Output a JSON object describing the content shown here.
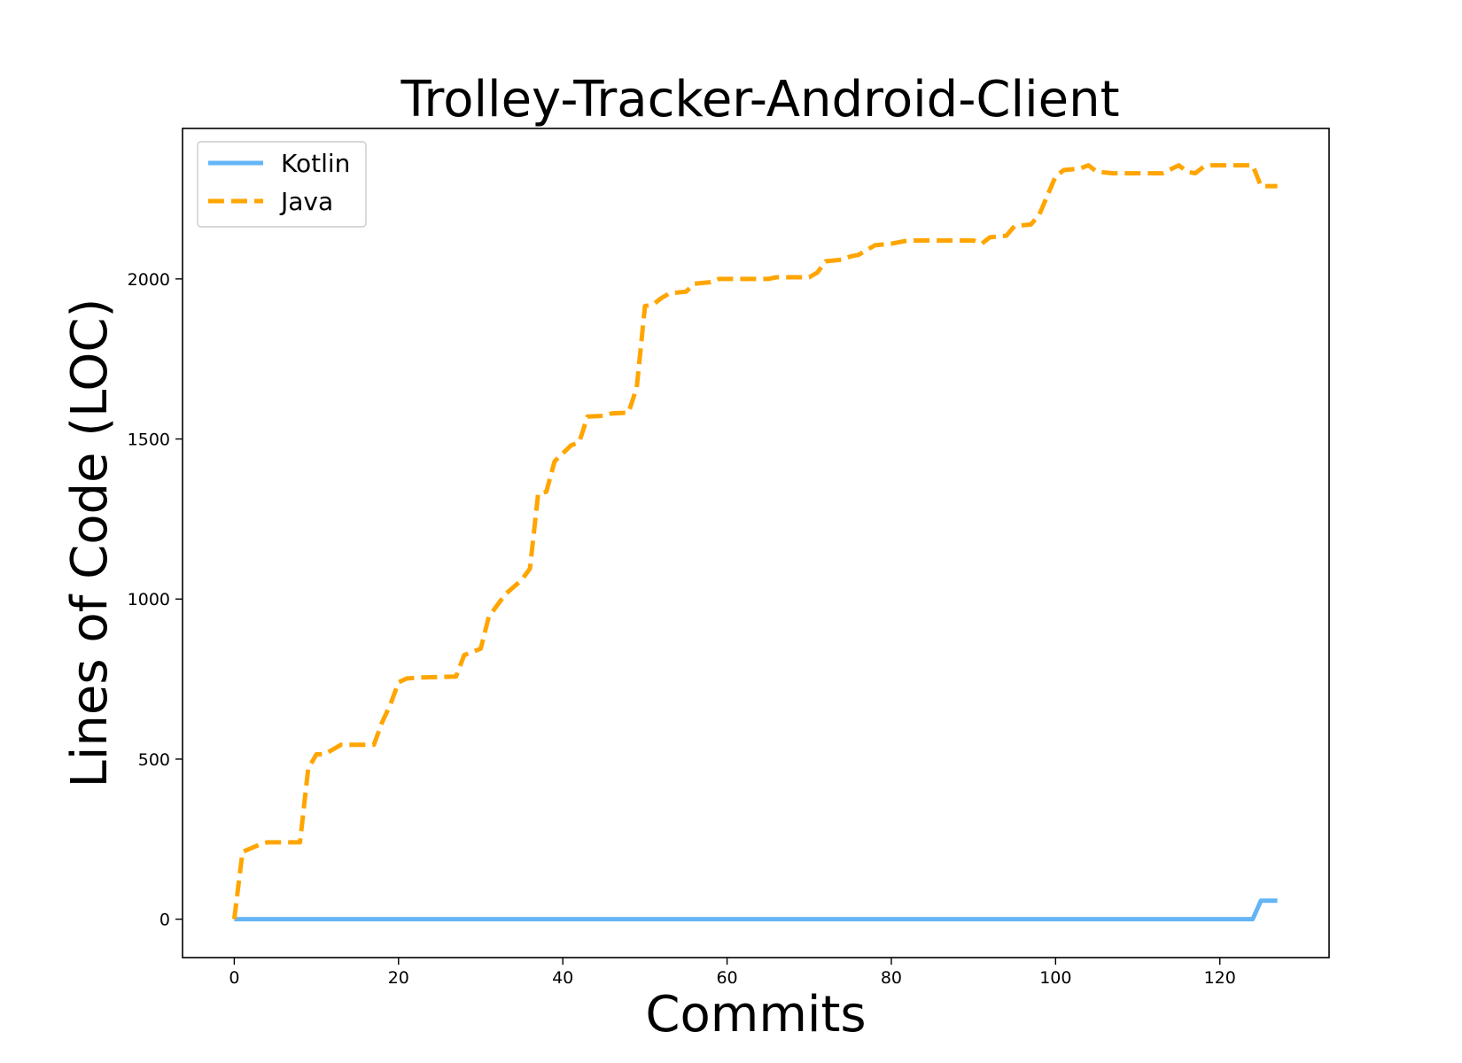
{
  "chart_data": {
    "type": "line",
    "title": "Trolley-Tracker-Android-Client",
    "xlabel": "Commits",
    "ylabel": "Lines of Code (LOC)",
    "xlim": [
      -6.3,
      133.3
    ],
    "ylim": [
      -120,
      2470
    ],
    "xticks": [
      0,
      20,
      40,
      60,
      80,
      100,
      120
    ],
    "yticks": [
      0,
      500,
      1000,
      1500,
      2000
    ],
    "grid": false,
    "legend": "top-left",
    "series": [
      {
        "name": "Kotlin",
        "color": "#64b5f6",
        "style": "solid",
        "points": [
          [
            0,
            0
          ],
          [
            124,
            0
          ],
          [
            125,
            58
          ],
          [
            127,
            58
          ]
        ]
      },
      {
        "name": "Java",
        "color": "#ffa500",
        "style": "dashed",
        "points": [
          [
            0,
            0
          ],
          [
            1,
            210
          ],
          [
            3,
            232
          ],
          [
            4,
            240
          ],
          [
            8,
            240
          ],
          [
            9,
            470
          ],
          [
            10,
            515
          ],
          [
            11,
            515
          ],
          [
            12,
            530
          ],
          [
            13,
            545
          ],
          [
            17,
            545
          ],
          [
            18,
            615
          ],
          [
            19,
            670
          ],
          [
            20,
            740
          ],
          [
            21,
            752
          ],
          [
            23,
            755
          ],
          [
            27,
            758
          ],
          [
            28,
            825
          ],
          [
            30,
            845
          ],
          [
            31,
            945
          ],
          [
            33,
            1015
          ],
          [
            35,
            1060
          ],
          [
            36,
            1095
          ],
          [
            37,
            1330
          ],
          [
            38,
            1335
          ],
          [
            39,
            1430
          ],
          [
            41,
            1480
          ],
          [
            42,
            1490
          ],
          [
            43,
            1570
          ],
          [
            45,
            1572
          ],
          [
            46,
            1580
          ],
          [
            48,
            1582
          ],
          [
            49,
            1660
          ],
          [
            50,
            1915
          ],
          [
            51,
            1920
          ],
          [
            52,
            1940
          ],
          [
            53,
            1955
          ],
          [
            55,
            1960
          ],
          [
            56,
            1985
          ],
          [
            58,
            1990
          ],
          [
            59,
            2000
          ],
          [
            65,
            2000
          ],
          [
            66,
            2005
          ],
          [
            70,
            2005
          ],
          [
            71,
            2020
          ],
          [
            72,
            2055
          ],
          [
            74,
            2060
          ],
          [
            75,
            2070
          ],
          [
            76,
            2075
          ],
          [
            77,
            2090
          ],
          [
            78,
            2105
          ],
          [
            80,
            2110
          ],
          [
            81,
            2115
          ],
          [
            82,
            2120
          ],
          [
            90,
            2120
          ],
          [
            91,
            2110
          ],
          [
            92,
            2130
          ],
          [
            94,
            2135
          ],
          [
            95,
            2165
          ],
          [
            97,
            2170
          ],
          [
            98,
            2200
          ],
          [
            100,
            2320
          ],
          [
            101,
            2340
          ],
          [
            103,
            2345
          ],
          [
            104,
            2355
          ],
          [
            105,
            2335
          ],
          [
            107,
            2330
          ],
          [
            113,
            2330
          ],
          [
            115,
            2355
          ],
          [
            116,
            2335
          ],
          [
            117,
            2330
          ],
          [
            118,
            2350
          ],
          [
            119,
            2355
          ],
          [
            124,
            2355
          ],
          [
            125,
            2290
          ],
          [
            127,
            2290
          ]
        ]
      }
    ]
  }
}
